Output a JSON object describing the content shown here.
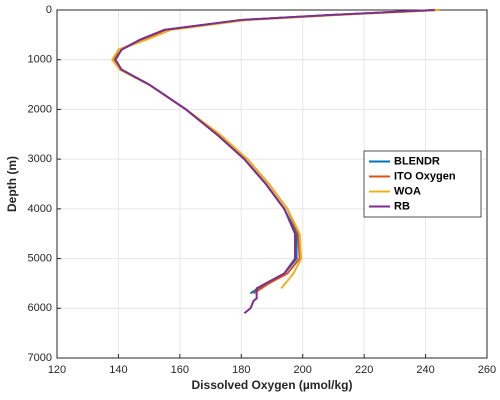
{
  "chart_data": {
    "type": "line",
    "x_label": "Dissolved Oxygen (µmol/kg)",
    "y_label": "Depth (m)",
    "xlim": [
      120,
      260
    ],
    "xticks": [
      120,
      140,
      160,
      180,
      200,
      220,
      240,
      260
    ],
    "ylim": [
      7000,
      0
    ],
    "yticks": [
      0,
      1000,
      2000,
      3000,
      4000,
      5000,
      6000,
      7000
    ],
    "grid": true,
    "legend": "east",
    "series": [
      {
        "name": "BLENDR",
        "color": "#0072bd",
        "values": [
          243,
          209,
          180,
          155,
          147,
          141,
          139,
          141,
          150,
          162,
          172,
          181,
          188,
          194,
          198,
          198,
          194,
          188,
          183
        ],
        "depths": [
          0,
          100,
          200,
          400,
          600,
          800,
          1000,
          1200,
          1500,
          2000,
          2500,
          3000,
          3500,
          4000,
          4500,
          5000,
          5300,
          5500,
          5700
        ]
      },
      {
        "name": "ITO Oxygen",
        "color": "#d95319",
        "values": [
          244,
          210,
          181,
          156,
          148,
          140,
          138.5,
          140.5,
          150,
          162,
          172,
          182,
          189,
          195,
          198.5,
          199,
          195,
          189,
          184
        ],
        "depths": [
          0,
          100,
          200,
          400,
          600,
          800,
          1000,
          1200,
          1500,
          2000,
          2500,
          3000,
          3500,
          4000,
          4500,
          5000,
          5300,
          5500,
          5700
        ]
      },
      {
        "name": "WOA",
        "color": "#edb120",
        "values": [
          244.5,
          211,
          182,
          157,
          149,
          140,
          138,
          140.5,
          150,
          162,
          173,
          182,
          189,
          195,
          199,
          199.5,
          197,
          193
        ],
        "depths": [
          0,
          100,
          200,
          400,
          600,
          800,
          1000,
          1200,
          1500,
          2000,
          2500,
          3000,
          3500,
          4000,
          4500,
          5000,
          5300,
          5600
        ]
      },
      {
        "name": "RB",
        "color": "#7e2f8e",
        "values": [
          243,
          209,
          180,
          155,
          147,
          141,
          139,
          141,
          150,
          162,
          172,
          181,
          188,
          194,
          197.5,
          197.5,
          194,
          188,
          185,
          185,
          184,
          183,
          181
        ],
        "depths": [
          0,
          100,
          200,
          400,
          600,
          800,
          1000,
          1200,
          1500,
          2000,
          2500,
          3000,
          3500,
          4000,
          4500,
          5000,
          5300,
          5500,
          5600,
          5800,
          5850,
          6000,
          6100
        ]
      }
    ]
  }
}
